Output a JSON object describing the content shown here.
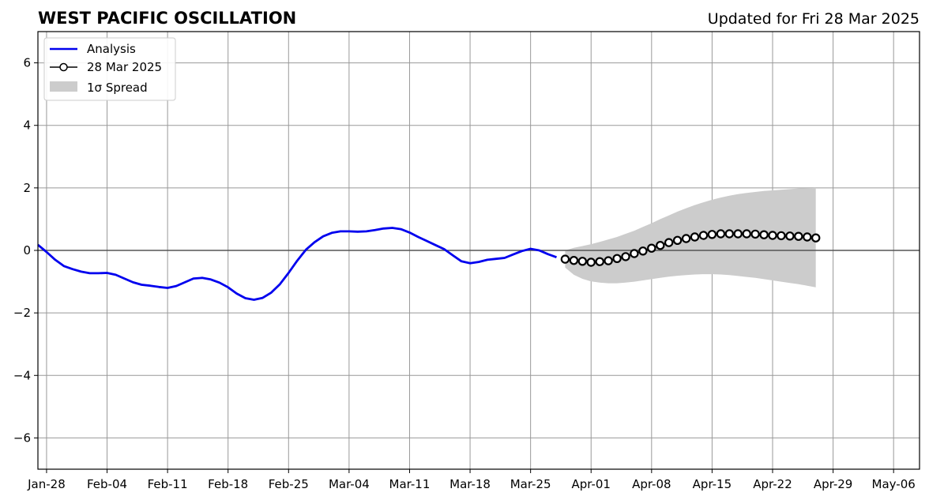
{
  "chart_data": {
    "type": "line",
    "title": "WEST PACIFIC OSCILLATION",
    "subtitle": "Updated for Fri 28 Mar 2025",
    "xlabel": "",
    "ylabel": "",
    "x_range": [
      "2025-01-27",
      "2025-05-09"
    ],
    "ylim": [
      -7,
      7
    ],
    "yticks": [
      -6,
      -4,
      -2,
      0,
      2,
      4,
      6
    ],
    "ytick_labels": [
      "−6",
      "−4",
      "−2",
      "0",
      "2",
      "4",
      "6"
    ],
    "xticks": [
      "2025-01-28",
      "2025-02-04",
      "2025-02-11",
      "2025-02-18",
      "2025-02-25",
      "2025-03-04",
      "2025-03-11",
      "2025-03-18",
      "2025-03-25",
      "2025-04-01",
      "2025-04-08",
      "2025-04-15",
      "2025-04-22",
      "2025-04-29",
      "2025-05-06"
    ],
    "xtick_labels": [
      "Jan-28",
      "Feb-04",
      "Feb-11",
      "Feb-18",
      "Feb-25",
      "Mar-04",
      "Mar-11",
      "Mar-18",
      "Mar-25",
      "Apr-01",
      "Apr-08",
      "Apr-15",
      "Apr-22",
      "Apr-29",
      "May-06"
    ],
    "grid": true,
    "legend_position": "top-left",
    "legend": [
      "Analysis",
      "28 Mar 2025",
      "1σ Spread"
    ],
    "colors": {
      "analysis": "#0000ee",
      "forecast_marker": "#000000",
      "spread": "#cccccc",
      "grid": "#999999",
      "zero_line": "#555555"
    },
    "series": [
      {
        "name": "Analysis",
        "start_date": "2025-01-27",
        "values": [
          0.18,
          -0.05,
          -0.3,
          -0.5,
          -0.6,
          -0.68,
          -0.73,
          -0.73,
          -0.72,
          -0.78,
          -0.9,
          -1.02,
          -1.1,
          -1.13,
          -1.17,
          -1.2,
          -1.14,
          -1.02,
          -0.9,
          -0.88,
          -0.93,
          -1.03,
          -1.18,
          -1.38,
          -1.53,
          -1.58,
          -1.52,
          -1.35,
          -1.08,
          -0.72,
          -0.33,
          0.02,
          0.26,
          0.45,
          0.56,
          0.61,
          0.61,
          0.6,
          0.61,
          0.65,
          0.7,
          0.72,
          0.68,
          0.57,
          0.43,
          0.3,
          0.17,
          0.04,
          -0.16,
          -0.35,
          -0.41,
          -0.37,
          -0.3,
          -0.27,
          -0.24,
          -0.13,
          -0.02,
          0.05,
          0.0,
          -0.12,
          -0.22
        ]
      },
      {
        "name": "28 Mar 2025",
        "start_date": "2025-03-29",
        "values": [
          -0.28,
          -0.32,
          -0.35,
          -0.38,
          -0.36,
          -0.33,
          -0.26,
          -0.2,
          -0.1,
          -0.02,
          0.07,
          0.16,
          0.25,
          0.32,
          0.38,
          0.43,
          0.48,
          0.51,
          0.53,
          0.53,
          0.53,
          0.53,
          0.52,
          0.5,
          0.48,
          0.47,
          0.46,
          0.45,
          0.43,
          0.4
        ]
      }
    ],
    "spread": {
      "name": "1σ Spread",
      "start_date": "2025-03-29",
      "upper": [
        0.0,
        0.08,
        0.14,
        0.2,
        0.27,
        0.35,
        0.43,
        0.53,
        0.63,
        0.75,
        0.87,
        1.0,
        1.12,
        1.24,
        1.35,
        1.45,
        1.54,
        1.62,
        1.69,
        1.75,
        1.8,
        1.84,
        1.87,
        1.9,
        1.92,
        1.94,
        1.96,
        1.98,
        1.99,
        2.0
      ],
      "lower": [
        -0.55,
        -0.78,
        -0.91,
        -0.99,
        -1.03,
        -1.05,
        -1.05,
        -1.03,
        -1.0,
        -0.96,
        -0.92,
        -0.88,
        -0.84,
        -0.81,
        -0.79,
        -0.77,
        -0.76,
        -0.76,
        -0.77,
        -0.79,
        -0.82,
        -0.85,
        -0.88,
        -0.92,
        -0.96,
        -1.0,
        -1.04,
        -1.08,
        -1.13,
        -1.18
      ]
    }
  }
}
